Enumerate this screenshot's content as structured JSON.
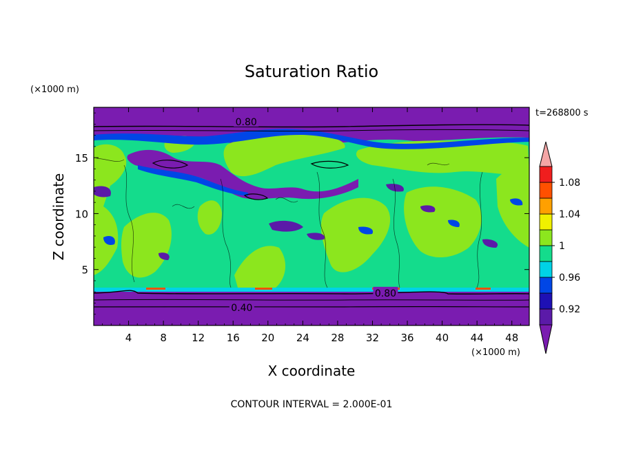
{
  "chart_data": {
    "type": "heatmap",
    "title": "Saturation Ratio",
    "xlabel": "X coordinate",
    "ylabel": "Z coordinate",
    "x_unit": "(×1000 m)",
    "y_unit": "(×1000 m)",
    "time_label": "t=268800 s",
    "contour_interval_label": "CONTOUR INTERVAL = 2.000E-01",
    "xlim": [
      0,
      50
    ],
    "ylim": [
      0,
      19.5
    ],
    "x_ticks": [
      4,
      8,
      12,
      16,
      20,
      24,
      28,
      32,
      36,
      40,
      44,
      48
    ],
    "y_ticks": [
      5,
      10,
      15
    ],
    "contour_labels": [
      {
        "text": "0.80",
        "x": 17.5,
        "z": 18.2
      },
      {
        "text": "0.80",
        "x": 33.5,
        "z": 2.9
      },
      {
        "text": "0.40",
        "x": 17.0,
        "z": 1.6
      }
    ],
    "colorbar": {
      "levels": [
        0.9,
        0.92,
        0.94,
        0.96,
        0.98,
        1.0,
        1.02,
        1.04,
        1.06,
        1.08,
        1.1
      ],
      "tick_labels": [
        "0.92",
        "0.96",
        "1",
        "1.04",
        "1.08"
      ],
      "tick_levels": [
        0.92,
        0.96,
        1.0,
        1.04,
        1.08
      ],
      "colors": [
        "#5b1aa8",
        "#1e10b4",
        "#0046e6",
        "#00d2e6",
        "#14dc8c",
        "#8ce61e",
        "#f0f000",
        "#ffa000",
        "#ff5000",
        "#f01e1e"
      ],
      "under_color": "#7a1cb0",
      "over_color": "#f4a6a6"
    }
  }
}
